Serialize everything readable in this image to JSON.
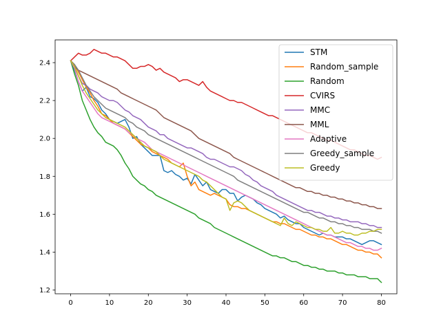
{
  "chart_data": {
    "type": "line",
    "title": "",
    "xlabel": "",
    "ylabel": "",
    "xlim": [
      -4,
      84
    ],
    "ylim": [
      1.18,
      2.52
    ],
    "xticks": [
      0,
      10,
      20,
      30,
      40,
      50,
      60,
      70,
      80
    ],
    "yticks": [
      1.2,
      1.4,
      1.6,
      1.8,
      2.0,
      2.2,
      2.4
    ],
    "xtick_labels": [
      "0",
      "10",
      "20",
      "30",
      "40",
      "50",
      "60",
      "70",
      "80"
    ],
    "ytick_labels": [
      "1.2",
      "1.4",
      "1.6",
      "1.8",
      "2.0",
      "2.2",
      "2.4"
    ],
    "grid": false,
    "legend_position": "upper right",
    "series": [
      {
        "name": "STM",
        "color": "#1f77b4",
        "values": [
          2.41,
          2.36,
          2.3,
          2.25,
          2.27,
          2.22,
          2.21,
          2.19,
          2.15,
          2.13,
          2.1,
          2.09,
          2.08,
          2.09,
          2.1,
          2.06,
          2.0,
          2.01,
          1.97,
          1.95,
          1.93,
          1.91,
          1.91,
          1.91,
          1.83,
          1.82,
          1.83,
          1.81,
          1.8,
          1.78,
          1.79,
          1.76,
          1.81,
          1.78,
          1.75,
          1.77,
          1.73,
          1.72,
          1.71,
          1.73,
          1.73,
          1.71,
          1.71,
          1.67,
          1.69,
          1.7,
          1.69,
          1.68,
          1.66,
          1.65,
          1.63,
          1.62,
          1.61,
          1.6,
          1.58,
          1.59,
          1.57,
          1.56,
          1.55,
          1.55,
          1.53,
          1.52,
          1.51,
          1.5,
          1.49,
          1.5,
          1.49,
          1.49,
          1.48,
          1.48,
          1.48,
          1.47,
          1.47,
          1.46,
          1.45,
          1.44,
          1.45,
          1.46,
          1.46,
          1.45,
          1.44
        ]
      },
      {
        "name": "Random_sample",
        "color": "#ff7f0e",
        "values": [
          2.41,
          2.39,
          2.35,
          2.31,
          2.27,
          2.24,
          2.2,
          2.17,
          2.13,
          2.12,
          2.1,
          2.08,
          2.07,
          2.06,
          2.05,
          2.03,
          2.01,
          1.99,
          1.97,
          1.96,
          1.95,
          1.93,
          1.92,
          1.91,
          1.9,
          1.89,
          1.87,
          1.86,
          1.85,
          1.87,
          1.8,
          1.75,
          1.77,
          1.73,
          1.72,
          1.71,
          1.7,
          1.71,
          1.7,
          1.69,
          1.68,
          1.65,
          1.64,
          1.64,
          1.63,
          1.63,
          1.62,
          1.61,
          1.6,
          1.59,
          1.58,
          1.57,
          1.56,
          1.56,
          1.55,
          1.55,
          1.54,
          1.53,
          1.52,
          1.52,
          1.51,
          1.5,
          1.49,
          1.49,
          1.48,
          1.48,
          1.47,
          1.47,
          1.46,
          1.45,
          1.44,
          1.44,
          1.43,
          1.42,
          1.41,
          1.41,
          1.4,
          1.4,
          1.39,
          1.39,
          1.37
        ]
      },
      {
        "name": "Random",
        "color": "#2ca02c",
        "values": [
          2.41,
          2.34,
          2.28,
          2.2,
          2.15,
          2.1,
          2.06,
          2.03,
          2.01,
          1.98,
          1.97,
          1.96,
          1.94,
          1.91,
          1.87,
          1.84,
          1.8,
          1.78,
          1.76,
          1.75,
          1.73,
          1.72,
          1.7,
          1.69,
          1.68,
          1.67,
          1.66,
          1.65,
          1.64,
          1.63,
          1.62,
          1.61,
          1.6,
          1.58,
          1.57,
          1.56,
          1.55,
          1.53,
          1.52,
          1.51,
          1.5,
          1.49,
          1.48,
          1.47,
          1.46,
          1.45,
          1.44,
          1.43,
          1.42,
          1.41,
          1.4,
          1.39,
          1.38,
          1.38,
          1.37,
          1.37,
          1.36,
          1.35,
          1.35,
          1.34,
          1.33,
          1.33,
          1.32,
          1.32,
          1.31,
          1.31,
          1.3,
          1.3,
          1.3,
          1.29,
          1.29,
          1.28,
          1.28,
          1.28,
          1.27,
          1.27,
          1.27,
          1.26,
          1.26,
          1.26,
          1.24
        ]
      },
      {
        "name": "CVIRS",
        "color": "#d62728",
        "values": [
          2.41,
          2.43,
          2.45,
          2.44,
          2.44,
          2.45,
          2.47,
          2.46,
          2.45,
          2.45,
          2.44,
          2.43,
          2.43,
          2.42,
          2.41,
          2.39,
          2.37,
          2.37,
          2.38,
          2.38,
          2.39,
          2.38,
          2.36,
          2.37,
          2.35,
          2.34,
          2.33,
          2.32,
          2.3,
          2.31,
          2.31,
          2.3,
          2.29,
          2.28,
          2.3,
          2.27,
          2.25,
          2.24,
          2.23,
          2.22,
          2.21,
          2.2,
          2.2,
          2.19,
          2.19,
          2.18,
          2.17,
          2.16,
          2.15,
          2.14,
          2.13,
          2.12,
          2.12,
          2.11,
          2.1,
          2.09,
          2.08,
          2.07,
          2.06,
          2.05,
          2.04,
          2.03,
          2.03,
          2.02,
          2.01,
          2.0,
          1.99,
          1.99,
          1.98,
          1.97,
          1.96,
          1.95,
          1.94,
          1.94,
          1.93,
          1.92,
          1.91,
          1.91,
          1.9,
          1.89,
          1.9
        ]
      },
      {
        "name": "MMC",
        "color": "#9467bd",
        "values": [
          2.41,
          2.38,
          2.33,
          2.29,
          2.28,
          2.26,
          2.25,
          2.24,
          2.22,
          2.21,
          2.2,
          2.2,
          2.19,
          2.17,
          2.15,
          2.14,
          2.12,
          2.11,
          2.1,
          2.08,
          2.06,
          2.05,
          2.04,
          2.02,
          2.02,
          2.0,
          1.99,
          1.98,
          1.97,
          1.96,
          1.95,
          1.95,
          1.94,
          1.93,
          1.92,
          1.9,
          1.89,
          1.89,
          1.88,
          1.87,
          1.86,
          1.85,
          1.85,
          1.84,
          1.83,
          1.81,
          1.8,
          1.78,
          1.77,
          1.75,
          1.74,
          1.73,
          1.72,
          1.7,
          1.69,
          1.68,
          1.67,
          1.66,
          1.65,
          1.64,
          1.63,
          1.62,
          1.62,
          1.61,
          1.61,
          1.6,
          1.59,
          1.59,
          1.58,
          1.58,
          1.57,
          1.57,
          1.56,
          1.56,
          1.56,
          1.55,
          1.55,
          1.54,
          1.54,
          1.53,
          1.53
        ]
      },
      {
        "name": "MML",
        "color": "#8c564b",
        "values": [
          2.41,
          2.38,
          2.36,
          2.35,
          2.34,
          2.33,
          2.32,
          2.31,
          2.3,
          2.29,
          2.28,
          2.27,
          2.26,
          2.24,
          2.23,
          2.22,
          2.21,
          2.2,
          2.19,
          2.18,
          2.17,
          2.16,
          2.15,
          2.13,
          2.11,
          2.1,
          2.09,
          2.08,
          2.07,
          2.06,
          2.05,
          2.04,
          2.02,
          2.0,
          1.99,
          1.98,
          1.97,
          1.96,
          1.95,
          1.94,
          1.93,
          1.92,
          1.9,
          1.89,
          1.88,
          1.87,
          1.86,
          1.85,
          1.84,
          1.83,
          1.82,
          1.81,
          1.8,
          1.79,
          1.78,
          1.77,
          1.76,
          1.75,
          1.74,
          1.74,
          1.73,
          1.72,
          1.72,
          1.71,
          1.71,
          1.7,
          1.7,
          1.69,
          1.69,
          1.68,
          1.68,
          1.67,
          1.67,
          1.66,
          1.66,
          1.65,
          1.65,
          1.64,
          1.64,
          1.63,
          1.63
        ]
      },
      {
        "name": "Adaptive",
        "color": "#e377c2",
        "values": [
          2.41,
          2.37,
          2.3,
          2.25,
          2.22,
          2.19,
          2.16,
          2.13,
          2.11,
          2.1,
          2.09,
          2.08,
          2.07,
          2.06,
          2.05,
          2.03,
          2.02,
          2.0,
          1.99,
          1.98,
          1.96,
          1.94,
          1.93,
          1.92,
          1.91,
          1.9,
          1.89,
          1.88,
          1.87,
          1.86,
          1.85,
          1.84,
          1.83,
          1.82,
          1.81,
          1.8,
          1.79,
          1.78,
          1.77,
          1.76,
          1.75,
          1.74,
          1.73,
          1.72,
          1.71,
          1.7,
          1.69,
          1.68,
          1.67,
          1.66,
          1.65,
          1.64,
          1.63,
          1.62,
          1.61,
          1.6,
          1.59,
          1.58,
          1.57,
          1.56,
          1.55,
          1.54,
          1.53,
          1.52,
          1.51,
          1.5,
          1.49,
          1.49,
          1.48,
          1.47,
          1.46,
          1.45,
          1.45,
          1.44,
          1.43,
          1.43,
          1.42,
          1.42,
          1.41,
          1.41,
          1.42
        ]
      },
      {
        "name": "Greedy_sample",
        "color": "#7f7f7f",
        "values": [
          2.41,
          2.39,
          2.36,
          2.32,
          2.28,
          2.25,
          2.22,
          2.2,
          2.18,
          2.16,
          2.15,
          2.14,
          2.13,
          2.12,
          2.11,
          2.09,
          2.08,
          2.06,
          2.05,
          2.04,
          2.02,
          2.01,
          2.0,
          1.99,
          1.98,
          1.97,
          1.96,
          1.95,
          1.94,
          1.93,
          1.92,
          1.91,
          1.9,
          1.89,
          1.88,
          1.87,
          1.86,
          1.85,
          1.84,
          1.83,
          1.82,
          1.81,
          1.8,
          1.78,
          1.77,
          1.76,
          1.75,
          1.74,
          1.73,
          1.72,
          1.71,
          1.7,
          1.69,
          1.68,
          1.67,
          1.66,
          1.65,
          1.64,
          1.63,
          1.62,
          1.61,
          1.61,
          1.6,
          1.59,
          1.58,
          1.58,
          1.57,
          1.56,
          1.56,
          1.55,
          1.55,
          1.54,
          1.54,
          1.53,
          1.53,
          1.52,
          1.52,
          1.52,
          1.51,
          1.51,
          1.5
        ]
      },
      {
        "name": "Greedy",
        "color": "#bcbd22",
        "values": [
          2.41,
          2.38,
          2.33,
          2.28,
          2.24,
          2.21,
          2.18,
          2.15,
          2.13,
          2.11,
          2.1,
          2.09,
          2.08,
          2.07,
          2.06,
          2.04,
          2.02,
          2.0,
          1.98,
          1.96,
          1.95,
          1.94,
          1.93,
          1.91,
          1.89,
          1.88,
          1.87,
          1.86,
          1.85,
          1.84,
          1.83,
          1.82,
          1.81,
          1.8,
          1.78,
          1.77,
          1.75,
          1.73,
          1.71,
          1.69,
          1.68,
          1.62,
          1.66,
          1.67,
          1.66,
          1.64,
          1.62,
          1.61,
          1.6,
          1.59,
          1.58,
          1.57,
          1.56,
          1.55,
          1.54,
          1.58,
          1.55,
          1.54,
          1.56,
          1.55,
          1.54,
          1.53,
          1.53,
          1.52,
          1.52,
          1.51,
          1.51,
          1.53,
          1.5,
          1.5,
          1.51,
          1.5,
          1.5,
          1.49,
          1.49,
          1.5,
          1.5,
          1.51,
          1.51,
          1.52,
          1.52
        ]
      }
    ]
  }
}
